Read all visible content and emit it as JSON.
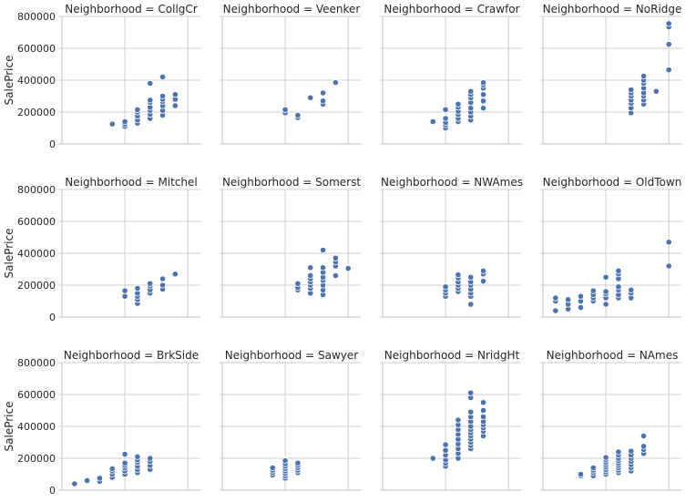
{
  "chart_data": {
    "type": "scatter",
    "facet_label": "Neighborhood",
    "ylabel": "SalePrice",
    "ylim": [
      0,
      800000
    ],
    "yticks": [
      0,
      200000,
      400000,
      600000,
      800000
    ],
    "ytick_labels": [
      "0",
      "200000",
      "400000",
      "600000",
      "800000"
    ],
    "xlim": [
      0,
      11
    ],
    "x_grid": [
      5,
      10
    ],
    "grid": true,
    "marker_color": "#4c72b0",
    "columns": 4,
    "panels": [
      {
        "title": "Neighborhood = CollgCr",
        "points": [
          [
            4,
            125000
          ],
          [
            5,
            110000
          ],
          [
            5,
            125000
          ],
          [
            5,
            140000
          ],
          [
            6,
            130000
          ],
          [
            6,
            150000
          ],
          [
            6,
            175000
          ],
          [
            6,
            200000
          ],
          [
            6,
            215000
          ],
          [
            7,
            160000
          ],
          [
            7,
            185000
          ],
          [
            7,
            210000
          ],
          [
            7,
            230000
          ],
          [
            7,
            260000
          ],
          [
            7,
            275000
          ],
          [
            7,
            380000
          ],
          [
            8,
            180000
          ],
          [
            8,
            210000
          ],
          [
            8,
            240000
          ],
          [
            8,
            265000
          ],
          [
            8,
            280000
          ],
          [
            8,
            300000
          ],
          [
            8,
            420000
          ],
          [
            9,
            240000
          ],
          [
            9,
            280000
          ],
          [
            9,
            310000
          ]
        ]
      },
      {
        "title": "Neighborhood = Veenker",
        "points": [
          [
            5,
            195000
          ],
          [
            5,
            215000
          ],
          [
            6,
            165000
          ],
          [
            6,
            180000
          ],
          [
            7,
            290000
          ],
          [
            8,
            250000
          ],
          [
            8,
            270000
          ],
          [
            8,
            320000
          ],
          [
            9,
            385000
          ]
        ]
      },
      {
        "title": "Neighborhood = Crawfor",
        "points": [
          [
            4,
            140000
          ],
          [
            5,
            100000
          ],
          [
            5,
            120000
          ],
          [
            5,
            135000
          ],
          [
            5,
            160000
          ],
          [
            5,
            215000
          ],
          [
            6,
            140000
          ],
          [
            6,
            160000
          ],
          [
            6,
            185000
          ],
          [
            6,
            205000
          ],
          [
            6,
            230000
          ],
          [
            6,
            250000
          ],
          [
            7,
            150000
          ],
          [
            7,
            175000
          ],
          [
            7,
            200000
          ],
          [
            7,
            225000
          ],
          [
            7,
            260000
          ],
          [
            7,
            290000
          ],
          [
            7,
            310000
          ],
          [
            7,
            330000
          ],
          [
            8,
            225000
          ],
          [
            8,
            270000
          ],
          [
            8,
            310000
          ],
          [
            8,
            350000
          ],
          [
            8,
            370000
          ],
          [
            8,
            385000
          ]
        ]
      },
      {
        "title": "Neighborhood = NoRidge",
        "points": [
          [
            7,
            195000
          ],
          [
            7,
            225000
          ],
          [
            7,
            255000
          ],
          [
            7,
            275000
          ],
          [
            7,
            300000
          ],
          [
            7,
            320000
          ],
          [
            7,
            340000
          ],
          [
            8,
            250000
          ],
          [
            8,
            275000
          ],
          [
            8,
            300000
          ],
          [
            8,
            320000
          ],
          [
            8,
            350000
          ],
          [
            8,
            380000
          ],
          [
            8,
            400000
          ],
          [
            8,
            425000
          ],
          [
            9,
            330000
          ],
          [
            10,
            465000
          ],
          [
            10,
            625000
          ],
          [
            10,
            735000
          ],
          [
            10,
            755000
          ]
        ]
      },
      {
        "title": "Neighborhood = Mitchel",
        "points": [
          [
            5,
            130000
          ],
          [
            5,
            165000
          ],
          [
            6,
            85000
          ],
          [
            6,
            110000
          ],
          [
            6,
            130000
          ],
          [
            6,
            150000
          ],
          [
            6,
            180000
          ],
          [
            7,
            150000
          ],
          [
            7,
            170000
          ],
          [
            7,
            195000
          ],
          [
            7,
            210000
          ],
          [
            8,
            175000
          ],
          [
            8,
            200000
          ],
          [
            8,
            240000
          ],
          [
            9,
            270000
          ]
        ]
      },
      {
        "title": "Neighborhood = Somerst",
        "points": [
          [
            6,
            170000
          ],
          [
            6,
            185000
          ],
          [
            6,
            210000
          ],
          [
            7,
            150000
          ],
          [
            7,
            180000
          ],
          [
            7,
            200000
          ],
          [
            7,
            220000
          ],
          [
            7,
            240000
          ],
          [
            7,
            260000
          ],
          [
            7,
            310000
          ],
          [
            8,
            140000
          ],
          [
            8,
            170000
          ],
          [
            8,
            200000
          ],
          [
            8,
            230000
          ],
          [
            8,
            250000
          ],
          [
            8,
            280000
          ],
          [
            8,
            310000
          ],
          [
            8,
            420000
          ],
          [
            9,
            260000
          ],
          [
            9,
            320000
          ],
          [
            9,
            345000
          ],
          [
            9,
            370000
          ],
          [
            10,
            305000
          ]
        ]
      },
      {
        "title": "Neighborhood = NWAmes",
        "points": [
          [
            5,
            130000
          ],
          [
            5,
            150000
          ],
          [
            5,
            170000
          ],
          [
            5,
            190000
          ],
          [
            6,
            160000
          ],
          [
            6,
            180000
          ],
          [
            6,
            200000
          ],
          [
            6,
            220000
          ],
          [
            6,
            245000
          ],
          [
            6,
            265000
          ],
          [
            7,
            80000
          ],
          [
            7,
            130000
          ],
          [
            7,
            150000
          ],
          [
            7,
            175000
          ],
          [
            7,
            200000
          ],
          [
            7,
            220000
          ],
          [
            7,
            250000
          ],
          [
            8,
            225000
          ],
          [
            8,
            270000
          ],
          [
            8,
            290000
          ]
        ]
      },
      {
        "title": "Neighborhood = OldTown",
        "points": [
          [
            1,
            40000
          ],
          [
            1,
            100000
          ],
          [
            1,
            120000
          ],
          [
            2,
            50000
          ],
          [
            2,
            80000
          ],
          [
            2,
            110000
          ],
          [
            3,
            60000
          ],
          [
            3,
            100000
          ],
          [
            3,
            130000
          ],
          [
            4,
            100000
          ],
          [
            4,
            120000
          ],
          [
            4,
            140000
          ],
          [
            4,
            165000
          ],
          [
            5,
            80000
          ],
          [
            5,
            120000
          ],
          [
            5,
            145000
          ],
          [
            5,
            160000
          ],
          [
            5,
            250000
          ],
          [
            6,
            120000
          ],
          [
            6,
            140000
          ],
          [
            6,
            170000
          ],
          [
            6,
            190000
          ],
          [
            6,
            240000
          ],
          [
            6,
            270000
          ],
          [
            6,
            290000
          ],
          [
            7,
            120000
          ],
          [
            7,
            150000
          ],
          [
            7,
            170000
          ],
          [
            10,
            320000
          ],
          [
            10,
            470000
          ]
        ]
      },
      {
        "title": "Neighborhood = BrkSide",
        "points": [
          [
            1,
            40000
          ],
          [
            2,
            60000
          ],
          [
            3,
            55000
          ],
          [
            3,
            75000
          ],
          [
            4,
            80000
          ],
          [
            4,
            100000
          ],
          [
            4,
            120000
          ],
          [
            4,
            135000
          ],
          [
            5,
            100000
          ],
          [
            5,
            120000
          ],
          [
            5,
            140000
          ],
          [
            5,
            155000
          ],
          [
            5,
            170000
          ],
          [
            5,
            225000
          ],
          [
            6,
            110000
          ],
          [
            6,
            130000
          ],
          [
            6,
            150000
          ],
          [
            6,
            175000
          ],
          [
            6,
            190000
          ],
          [
            6,
            210000
          ],
          [
            7,
            130000
          ],
          [
            7,
            155000
          ],
          [
            7,
            180000
          ],
          [
            7,
            200000
          ]
        ]
      },
      {
        "title": "Neighborhood = Sawyer",
        "points": [
          [
            4,
            95000
          ],
          [
            4,
            110000
          ],
          [
            4,
            125000
          ],
          [
            4,
            140000
          ],
          [
            5,
            75000
          ],
          [
            5,
            90000
          ],
          [
            5,
            105000
          ],
          [
            5,
            120000
          ],
          [
            5,
            135000
          ],
          [
            5,
            150000
          ],
          [
            5,
            165000
          ],
          [
            5,
            185000
          ],
          [
            6,
            110000
          ],
          [
            6,
            125000
          ],
          [
            6,
            140000
          ],
          [
            6,
            155000
          ],
          [
            6,
            170000
          ]
        ]
      },
      {
        "title": "Neighborhood = NridgHt",
        "points": [
          [
            4,
            200000
          ],
          [
            5,
            150000
          ],
          [
            5,
            170000
          ],
          [
            5,
            190000
          ],
          [
            5,
            220000
          ],
          [
            5,
            250000
          ],
          [
            5,
            285000
          ],
          [
            6,
            200000
          ],
          [
            6,
            230000
          ],
          [
            6,
            260000
          ],
          [
            6,
            290000
          ],
          [
            6,
            320000
          ],
          [
            6,
            350000
          ],
          [
            6,
            380000
          ],
          [
            6,
            410000
          ],
          [
            6,
            440000
          ],
          [
            7,
            260000
          ],
          [
            7,
            280000
          ],
          [
            7,
            300000
          ],
          [
            7,
            320000
          ],
          [
            7,
            340000
          ],
          [
            7,
            360000
          ],
          [
            7,
            380000
          ],
          [
            7,
            400000
          ],
          [
            7,
            430000
          ],
          [
            7,
            460000
          ],
          [
            7,
            490000
          ],
          [
            7,
            580000
          ],
          [
            7,
            610000
          ],
          [
            8,
            340000
          ],
          [
            8,
            370000
          ],
          [
            8,
            390000
          ],
          [
            8,
            410000
          ],
          [
            8,
            430000
          ],
          [
            8,
            460000
          ],
          [
            8,
            500000
          ],
          [
            8,
            550000
          ]
        ]
      },
      {
        "title": "Neighborhood = NAmes",
        "points": [
          [
            3,
            90000
          ],
          [
            3,
            100000
          ],
          [
            4,
            90000
          ],
          [
            4,
            110000
          ],
          [
            4,
            125000
          ],
          [
            4,
            140000
          ],
          [
            5,
            100000
          ],
          [
            5,
            115000
          ],
          [
            5,
            130000
          ],
          [
            5,
            145000
          ],
          [
            5,
            160000
          ],
          [
            5,
            175000
          ],
          [
            5,
            190000
          ],
          [
            5,
            205000
          ],
          [
            6,
            110000
          ],
          [
            6,
            125000
          ],
          [
            6,
            140000
          ],
          [
            6,
            155000
          ],
          [
            6,
            170000
          ],
          [
            6,
            185000
          ],
          [
            6,
            200000
          ],
          [
            6,
            220000
          ],
          [
            6,
            240000
          ],
          [
            7,
            120000
          ],
          [
            7,
            140000
          ],
          [
            7,
            160000
          ],
          [
            7,
            180000
          ],
          [
            7,
            200000
          ],
          [
            7,
            220000
          ],
          [
            7,
            245000
          ],
          [
            8,
            230000
          ],
          [
            8,
            255000
          ],
          [
            8,
            275000
          ],
          [
            8,
            340000
          ]
        ]
      }
    ]
  }
}
